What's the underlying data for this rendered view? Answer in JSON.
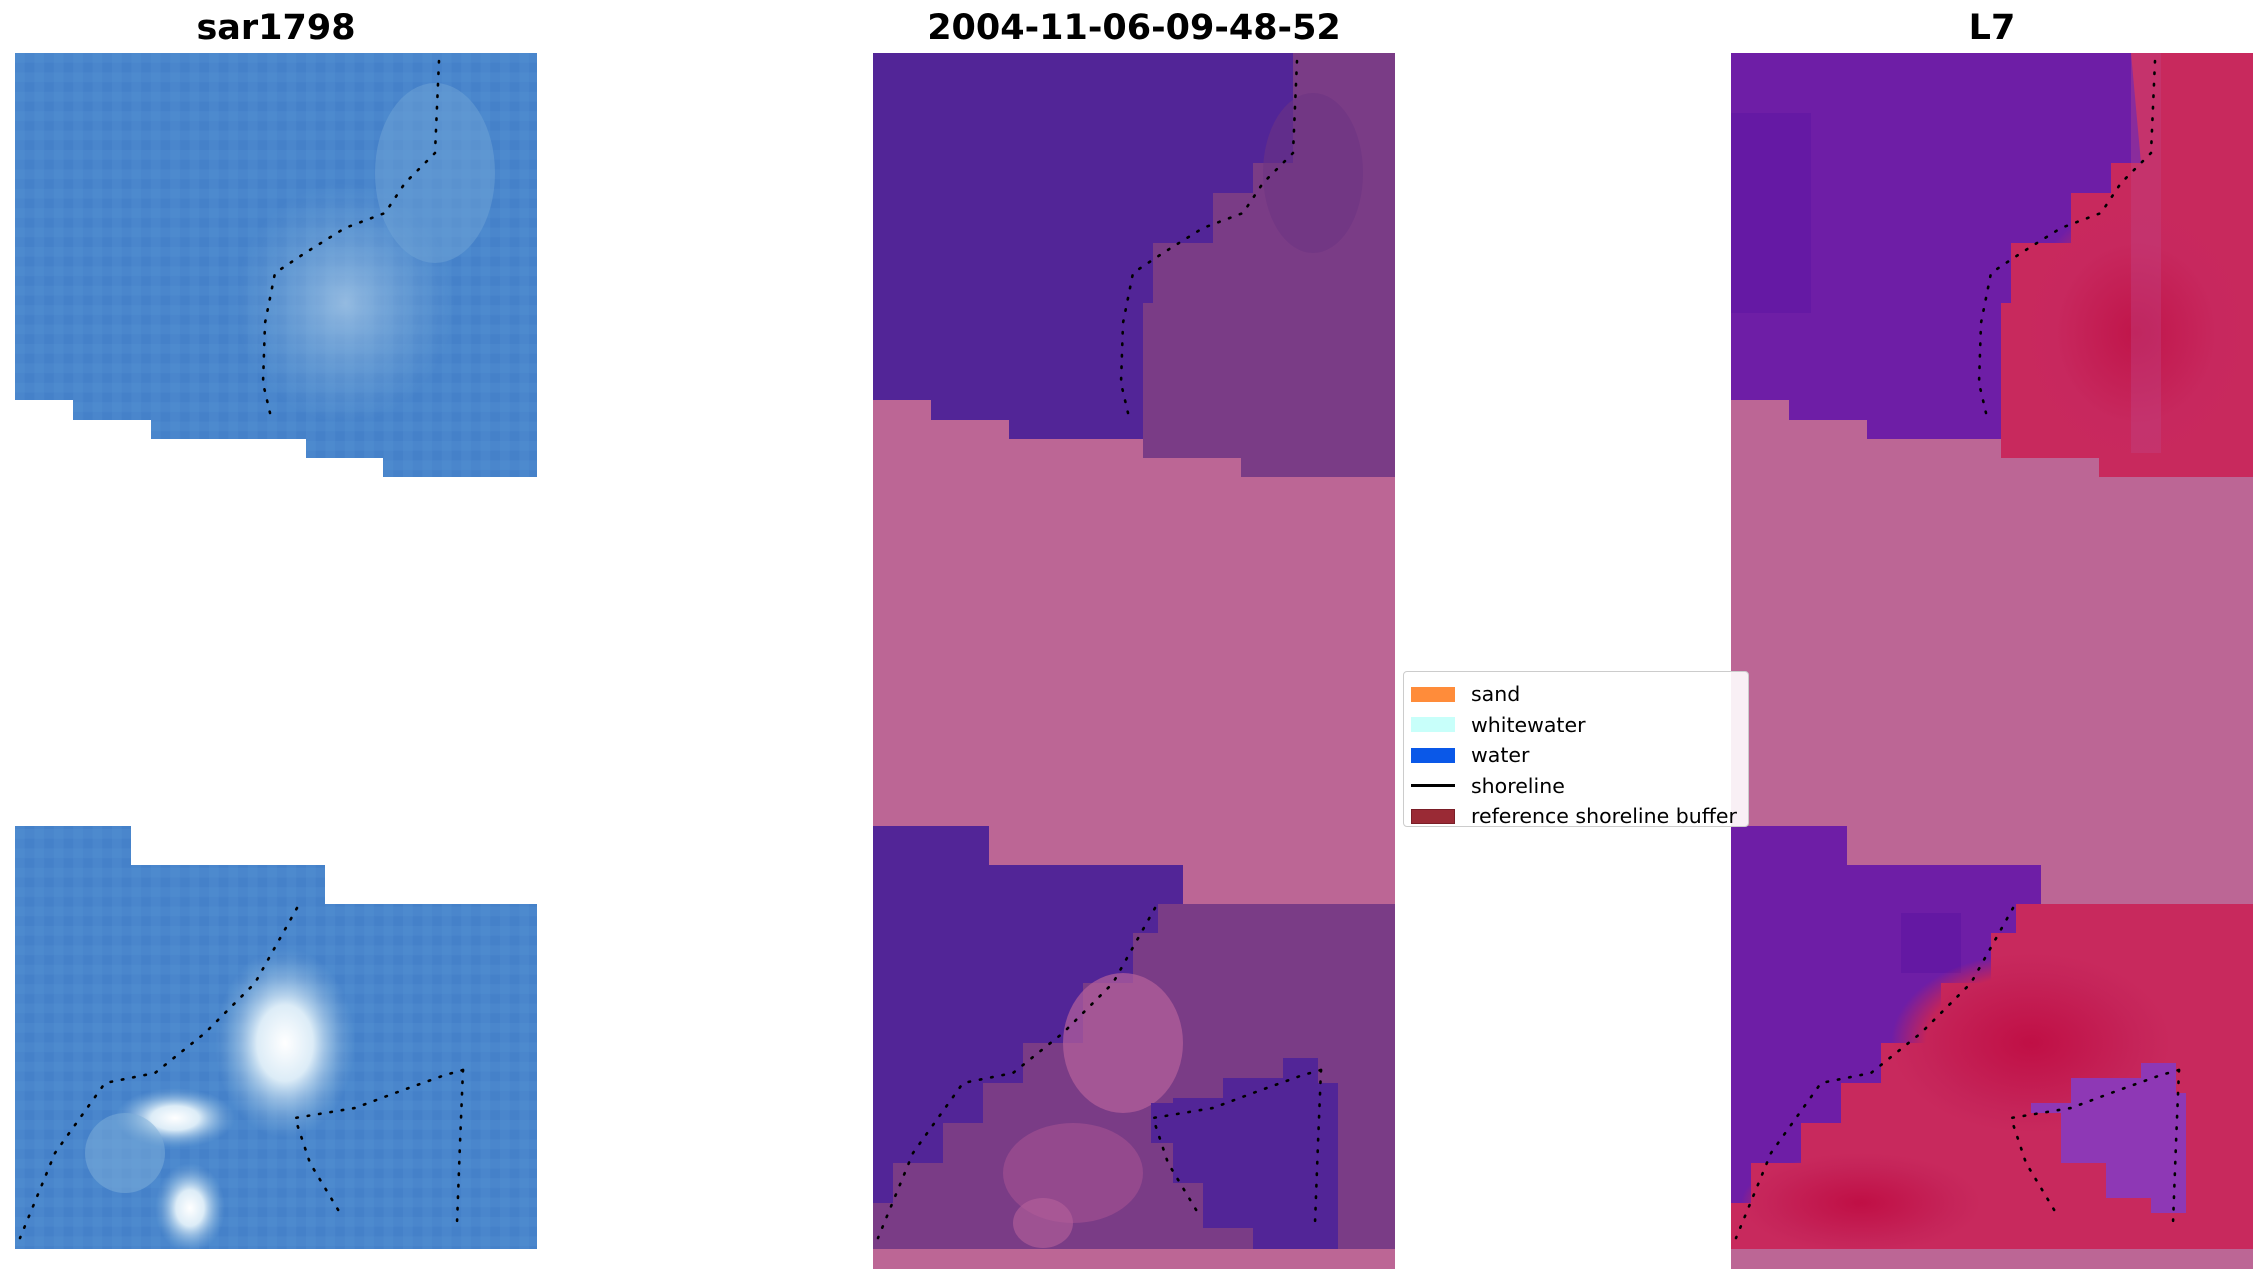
{
  "panels": [
    {
      "title": "sar1798"
    },
    {
      "title": "2004-11-06-09-48-52"
    },
    {
      "title": "L7"
    }
  ],
  "legend": {
    "items": [
      {
        "label": "sand",
        "color": "#ff8c3a",
        "kind": "patch"
      },
      {
        "label": "whitewater",
        "color": "#c8fffa",
        "kind": "patch"
      },
      {
        "label": "water",
        "color": "#0a58e8",
        "kind": "patch"
      },
      {
        "label": "shoreline",
        "color": "#000000",
        "kind": "line"
      },
      {
        "label": "reference shoreline buffer",
        "color": "#9a2a35",
        "kind": "patch"
      }
    ]
  },
  "colors": {
    "rgb_base": "#4a86cc",
    "classified_water": "#522597",
    "classified_land": "#7e3f84",
    "buffer_pink": "#bc6695",
    "mndwi_low": "#6a1aa8",
    "mndwi_high": "#c0154a"
  }
}
